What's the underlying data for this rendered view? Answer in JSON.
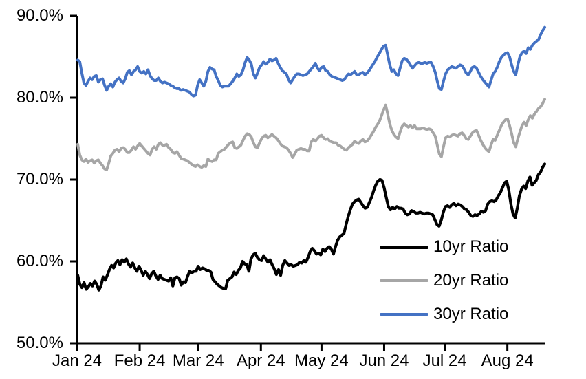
{
  "chart_data": {
    "type": "line",
    "title": "",
    "xlabel": "",
    "ylabel": "",
    "grid": false,
    "legend_position": "inside-lower-right",
    "ylim": [
      50,
      90
    ],
    "y_ticks": {
      "labels": [
        "90.0%",
        "80.0%",
        "70.0%",
        "60.0%",
        "50.0%"
      ],
      "values": [
        90,
        80,
        70,
        60,
        50
      ]
    },
    "x_ticks": {
      "labels": [
        "Jan 24",
        "Feb 24",
        "Mar 24",
        "Apr 24",
        "May 24",
        "Jun 24",
        "Jul 24",
        "Aug 24"
      ],
      "days": [
        0,
        31,
        60,
        91,
        121,
        152,
        182,
        213
      ]
    },
    "x_range_days": [
      0,
      231.5
    ],
    "series": [
      {
        "name": "10yr Ratio",
        "color": "#000000",
        "values": [
          58.3,
          57.2,
          56.8,
          57.4,
          56.6,
          56.9,
          57.3,
          57.0,
          57.6,
          57.2,
          56.5,
          57.0,
          58.1,
          57.7,
          58.3,
          59.0,
          59.5,
          59.2,
          59.8,
          60.1,
          59.6,
          60.2,
          59.9,
          60.3,
          59.7,
          59.3,
          59.8,
          59.2,
          58.8,
          59.4,
          58.9,
          58.3,
          58.8,
          58.4,
          57.9,
          58.5,
          58.8,
          58.2,
          57.8,
          58.3,
          57.9,
          57.8,
          57.7,
          57.6,
          58.0,
          57.0,
          58.0,
          58.1,
          57.9,
          57.1,
          57.5,
          57.4,
          58.2,
          58.8,
          58.6,
          58.8,
          58.8,
          59.4,
          59.0,
          59.2,
          59.1,
          58.9,
          58.9,
          58.7,
          57.8,
          57.5,
          57.2,
          57.0,
          56.8,
          56.7,
          56.7,
          57.7,
          57.9,
          58.1,
          58.7,
          58.4,
          58.9,
          59.2,
          60.0,
          59.7,
          59.6,
          58.8,
          60.3,
          60.8,
          61.0,
          60.5,
          60.2,
          60.1,
          60.7,
          60.3,
          59.9,
          60.2,
          59.6,
          59.1,
          58.4,
          59.0,
          58.3,
          59.5,
          60.1,
          59.8,
          59.5,
          59.6,
          59.4,
          59.5,
          59.6,
          59.9,
          59.8,
          60.1,
          59.9,
          60.5,
          61.2,
          61.6,
          61.3,
          60.9,
          61.0,
          60.8,
          61.5,
          61.2,
          61.6,
          61.8,
          61.5,
          60.9,
          61.8,
          62.6,
          63.0,
          63.2,
          63.4,
          64.5,
          65.5,
          66.3,
          67.0,
          67.3,
          67.5,
          67.6,
          67.2,
          66.8,
          66.5,
          66.6,
          67.2,
          67.8,
          68.6,
          69.3,
          69.8,
          70.0,
          69.9,
          69.0,
          67.8,
          66.7,
          66.3,
          66.6,
          66.4,
          66.7,
          66.5,
          66.5,
          66.4,
          65.9,
          65.7,
          65.8,
          66.2,
          66.1,
          65.9,
          65.9,
          66.0,
          65.9,
          65.8,
          65.9,
          65.9,
          65.8,
          65.7,
          65.1,
          64.5,
          64.3,
          65.0,
          66.0,
          66.7,
          66.8,
          66.6,
          66.9,
          67.1,
          66.8,
          67.0,
          66.9,
          66.7,
          66.4,
          66.3,
          66.0,
          65.6,
          65.5,
          65.7,
          65.6,
          65.8,
          66.1,
          66.0,
          66.2,
          67.0,
          67.3,
          67.4,
          67.3,
          67.5,
          68.0,
          68.4,
          69.0,
          69.6,
          69.8,
          68.7,
          67.0,
          65.8,
          65.3,
          66.5,
          68.0,
          68.8,
          69.2,
          68.9,
          69.8,
          70.3,
          69.3,
          69.6,
          69.9,
          70.6,
          70.9,
          71.5,
          71.9
        ]
      },
      {
        "name": "20yr Ratio",
        "color": "#A6A6A6",
        "values": [
          74.3,
          73.0,
          72.4,
          72.2,
          72.5,
          72.1,
          72.3,
          72.4,
          72.0,
          72.3,
          72.4,
          72.0,
          71.7,
          71.3,
          71.2,
          72.0,
          72.9,
          73.2,
          73.6,
          73.7,
          73.4,
          73.8,
          73.9,
          73.7,
          73.3,
          73.3,
          73.6,
          74.0,
          73.7,
          74.1,
          74.4,
          74.1,
          73.8,
          73.5,
          73.2,
          73.0,
          73.7,
          74.0,
          73.7,
          74.3,
          74.5,
          74.2,
          74.2,
          74.3,
          73.9,
          73.7,
          73.3,
          73.2,
          73.4,
          73.0,
          72.6,
          72.5,
          72.4,
          72.3,
          72.1,
          71.9,
          71.7,
          71.6,
          71.8,
          71.6,
          71.5,
          71.7,
          71.6,
          72.5,
          72.3,
          72.2,
          72.4,
          72.4,
          73.2,
          73.4,
          73.6,
          73.7,
          74.0,
          74.3,
          74.5,
          74.6,
          73.9,
          73.8,
          74.0,
          74.2,
          74.8,
          75.3,
          75.6,
          75.5,
          75.2,
          74.5,
          74.0,
          73.9,
          74.5,
          75.0,
          75.3,
          75.4,
          75.1,
          75.3,
          75.5,
          75.3,
          75.1,
          74.8,
          74.4,
          74.1,
          74.0,
          73.9,
          73.6,
          73.2,
          72.7,
          73.1,
          73.6,
          73.7,
          73.8,
          73.7,
          73.7,
          73.5,
          73.5,
          74.6,
          74.9,
          74.7,
          75.0,
          75.3,
          75.4,
          75.1,
          74.9,
          75.0,
          74.7,
          74.6,
          74.5,
          74.5,
          74.2,
          74.1,
          73.9,
          73.7,
          73.6,
          73.9,
          74.1,
          74.3,
          74.7,
          74.5,
          74.4,
          74.7,
          74.9,
          74.6,
          74.7,
          75.0,
          75.4,
          75.8,
          76.3,
          76.7,
          77.1,
          77.8,
          78.5,
          79.1,
          78.0,
          76.8,
          76.0,
          75.5,
          75.2,
          75.0,
          75.8,
          76.5,
          76.8,
          76.6,
          76.4,
          76.6,
          76.3,
          76.6,
          76.2,
          76.2,
          76.2,
          76.3,
          76.2,
          76.1,
          76.2,
          76.1,
          75.7,
          75.3,
          74.2,
          73.1,
          72.8,
          74.0,
          75.1,
          75.3,
          75.2,
          75.4,
          75.5,
          75.4,
          75.3,
          75.6,
          75.7,
          75.4,
          75.0,
          74.9,
          75.3,
          75.7,
          75.9,
          76.0,
          75.4,
          74.8,
          74.3,
          73.9,
          73.6,
          73.4,
          74.2,
          74.9,
          74.8,
          75.4,
          76.0,
          76.6,
          77.0,
          77.3,
          77.4,
          76.6,
          75.6,
          74.5,
          74.0,
          75.0,
          75.8,
          76.6,
          77.0,
          76.6,
          77.3,
          77.8,
          77.5,
          78.0,
          78.3,
          78.7,
          78.9,
          79.3,
          79.8
        ]
      },
      {
        "name": "30yr Ratio",
        "color": "#4472C4",
        "values": [
          84.6,
          84.4,
          83.0,
          81.8,
          81.5,
          82.0,
          82.4,
          82.2,
          82.6,
          82.7,
          81.9,
          82.2,
          82.3,
          81.5,
          80.9,
          81.4,
          81.7,
          81.3,
          81.9,
          82.2,
          82.4,
          82.0,
          81.8,
          82.3,
          83.1,
          83.3,
          82.8,
          83.2,
          83.4,
          83.8,
          83.2,
          83.0,
          83.2,
          82.9,
          83.4,
          82.7,
          82.3,
          82.1,
          82.1,
          82.4,
          82.0,
          81.8,
          81.9,
          81.8,
          81.7,
          81.5,
          81.4,
          81.2,
          81.1,
          81.1,
          80.9,
          81.0,
          80.9,
          80.8,
          80.7,
          80.4,
          80.2,
          80.3,
          81.5,
          82.2,
          81.8,
          81.4,
          82.0,
          83.2,
          83.7,
          83.5,
          83.4,
          82.6,
          82.1,
          81.5,
          81.3,
          81.4,
          81.4,
          81.4,
          81.7,
          82.0,
          82.4,
          82.9,
          82.6,
          82.8,
          83.4,
          84.3,
          84.9,
          84.6,
          84.1,
          82.9,
          82.4,
          83.0,
          83.7,
          84.0,
          84.4,
          84.1,
          84.3,
          84.7,
          84.5,
          84.6,
          84.8,
          84.2,
          83.7,
          83.3,
          83.1,
          82.9,
          82.2,
          81.8,
          82.2,
          82.6,
          82.9,
          82.9,
          82.8,
          82.7,
          82.8,
          82.9,
          83.2,
          83.5,
          83.8,
          84.2,
          83.6,
          83.3,
          83.7,
          83.8,
          83.3,
          83.2,
          82.8,
          82.6,
          82.5,
          82.4,
          82.3,
          82.2,
          82.1,
          82.2,
          82.6,
          82.9,
          82.8,
          83.0,
          83.2,
          82.8,
          82.8,
          83.0,
          83.1,
          82.8,
          83.0,
          83.3,
          83.7,
          84.1,
          84.5,
          85.0,
          85.4,
          85.9,
          86.3,
          86.4,
          85.2,
          84.0,
          83.2,
          83.4,
          82.9,
          82.7,
          83.6,
          84.5,
          84.8,
          84.7,
          84.4,
          84.0,
          83.6,
          83.9,
          84.2,
          84.3,
          84.2,
          84.2,
          84.3,
          84.2,
          84.3,
          84.3,
          83.8,
          83.1,
          82.0,
          81.1,
          81.0,
          82.0,
          82.9,
          83.4,
          83.6,
          83.8,
          83.7,
          83.6,
          83.8,
          84.0,
          83.9,
          83.5,
          83.0,
          82.8,
          83.2,
          83.7,
          83.8,
          83.6,
          83.1,
          82.6,
          82.2,
          81.9,
          81.6,
          81.3,
          82.1,
          82.9,
          83.2,
          83.7,
          84.4,
          84.9,
          85.2,
          85.4,
          85.5,
          85.0,
          84.0,
          83.2,
          82.8,
          84.0,
          85.0,
          85.5,
          85.7,
          85.4,
          86.1,
          85.9,
          86.4,
          86.7,
          86.9,
          87.1,
          87.7,
          88.2,
          88.6
        ]
      }
    ]
  }
}
